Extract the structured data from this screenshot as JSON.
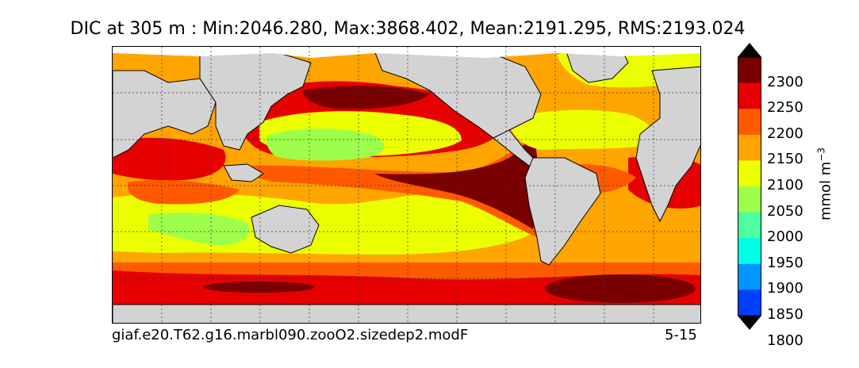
{
  "title": "DIC at 305 m : Min:2046.280, Max:3868.402, Mean:2191.295, RMS:2193.024",
  "footer": {
    "case_name": "giaf.e20.T62.g16.marbl090.zooO2.sizedep2.modF",
    "date_label": "5-15"
  },
  "colorbar": {
    "unit_text": "mmol m",
    "unit_exponent": "−3",
    "ticks": [
      "2300",
      "2250",
      "2200",
      "2150",
      "2100",
      "2050",
      "2000",
      "1950",
      "1900",
      "1850",
      "1800"
    ],
    "levels_top_to_bottom": [
      "#7a0000",
      "#e60000",
      "#ff5a00",
      "#ffa500",
      "#ebff00",
      "#9dff4c",
      "#4cffa0",
      "#00ffe8",
      "#0095ff",
      "#0040ff",
      "#0000e0",
      "#00007a"
    ],
    "extend": "both"
  },
  "map": {
    "land_color": "#d3d3d3",
    "ice_color": "#ffffff",
    "grid": "dotted"
  }
}
